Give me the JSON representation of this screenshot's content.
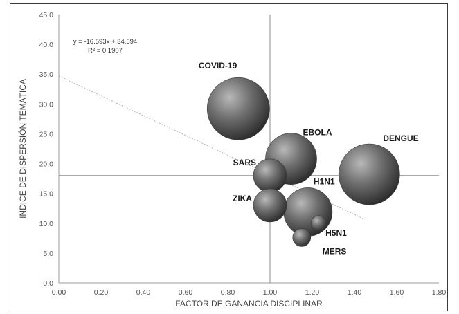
{
  "chart_data": {
    "type": "scatter",
    "variant": "bubble",
    "xlabel": "FACTOR DE GANANCIA DISCIPLINAR",
    "ylabel": "INDICE DE DISPERSIÓN TEMÁTICA",
    "xlim": [
      0,
      1.8
    ],
    "ylim": [
      0,
      45
    ],
    "xticks": [
      "0.00",
      "0.20",
      "0.40",
      "0.60",
      "0.80",
      "1.00",
      "1.20",
      "1.40",
      "1.60",
      "1.80"
    ],
    "yticks": [
      "0.0",
      "5.0",
      "10.0",
      "15.0",
      "20.0",
      "25.0",
      "30.0",
      "35.0",
      "40.0",
      "45.0"
    ],
    "grid": false,
    "points": [
      {
        "label": "COVID-19",
        "x": 0.85,
        "y": 29.2,
        "size": 45
      },
      {
        "label": "DENGUE",
        "x": 1.47,
        "y": 18.2,
        "size": 44
      },
      {
        "label": "EBOLA",
        "x": 1.1,
        "y": 20.8,
        "size": 37
      },
      {
        "label": "H1N1",
        "x": 1.18,
        "y": 11.9,
        "size": 35
      },
      {
        "label": "SARS",
        "x": 1.0,
        "y": 18.0,
        "size": 24
      },
      {
        "label": "ZIKA",
        "x": 1.0,
        "y": 13.0,
        "size": 24
      },
      {
        "label": "H5N1",
        "x": 1.23,
        "y": 10.0,
        "size": 11
      },
      {
        "label": "MERS",
        "x": 1.15,
        "y": 7.6,
        "size": 13
      }
    ],
    "reference_lines": {
      "x": 1.0,
      "y": 18.0
    },
    "trendline": {
      "slope": -16.593,
      "intercept": 34.694,
      "x_range": [
        0,
        1.45
      ],
      "equation": "y = -16.593x + 34.694",
      "r2": "R² = 0.1907"
    }
  },
  "colors": {
    "bubble_dark": "#2b2b2b",
    "bubble_mid": "#6e6e6e",
    "bubble_light": "#b5b5b5",
    "axis": "#9a9a9a",
    "reference_line": "#8c8c8c",
    "trendline": "#b0b0b0"
  }
}
